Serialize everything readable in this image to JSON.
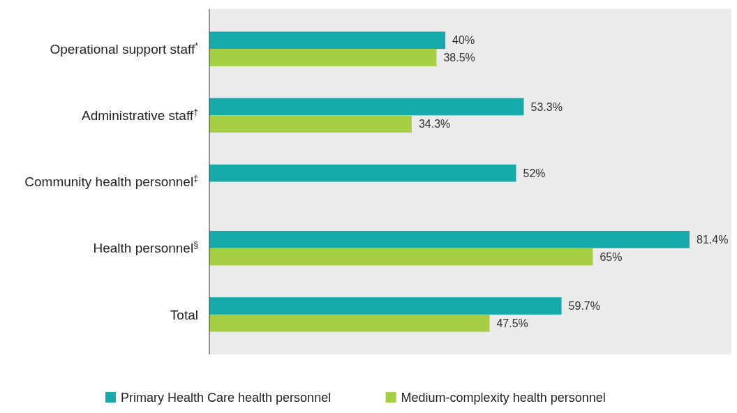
{
  "chart_data": {
    "type": "bar",
    "orientation": "horizontal",
    "categories": [
      "Operational support staff$^{*}$",
      "Administrative staff$^{†}$",
      "Community health personnel$^{‡}$",
      "Health personnel$^{§}$",
      "Total"
    ],
    "series": [
      {
        "name": "Primary Health Care health personnel",
        "color": "#17aaaa",
        "values": [
          40,
          53.3,
          52,
          81.4,
          59.7
        ],
        "value_labels": [
          "40%",
          "53.3%",
          "52%",
          "81.4%",
          "59.7%"
        ]
      },
      {
        "name": "Medium-complexity health personnel",
        "color": "#a6ce42",
        "values": [
          38.5,
          34.3,
          null,
          65,
          47.5
        ],
        "value_labels": [
          "38.5%",
          "34.3%",
          null,
          "65%",
          "47.5%"
        ]
      }
    ],
    "legend": "bottom"
  }
}
